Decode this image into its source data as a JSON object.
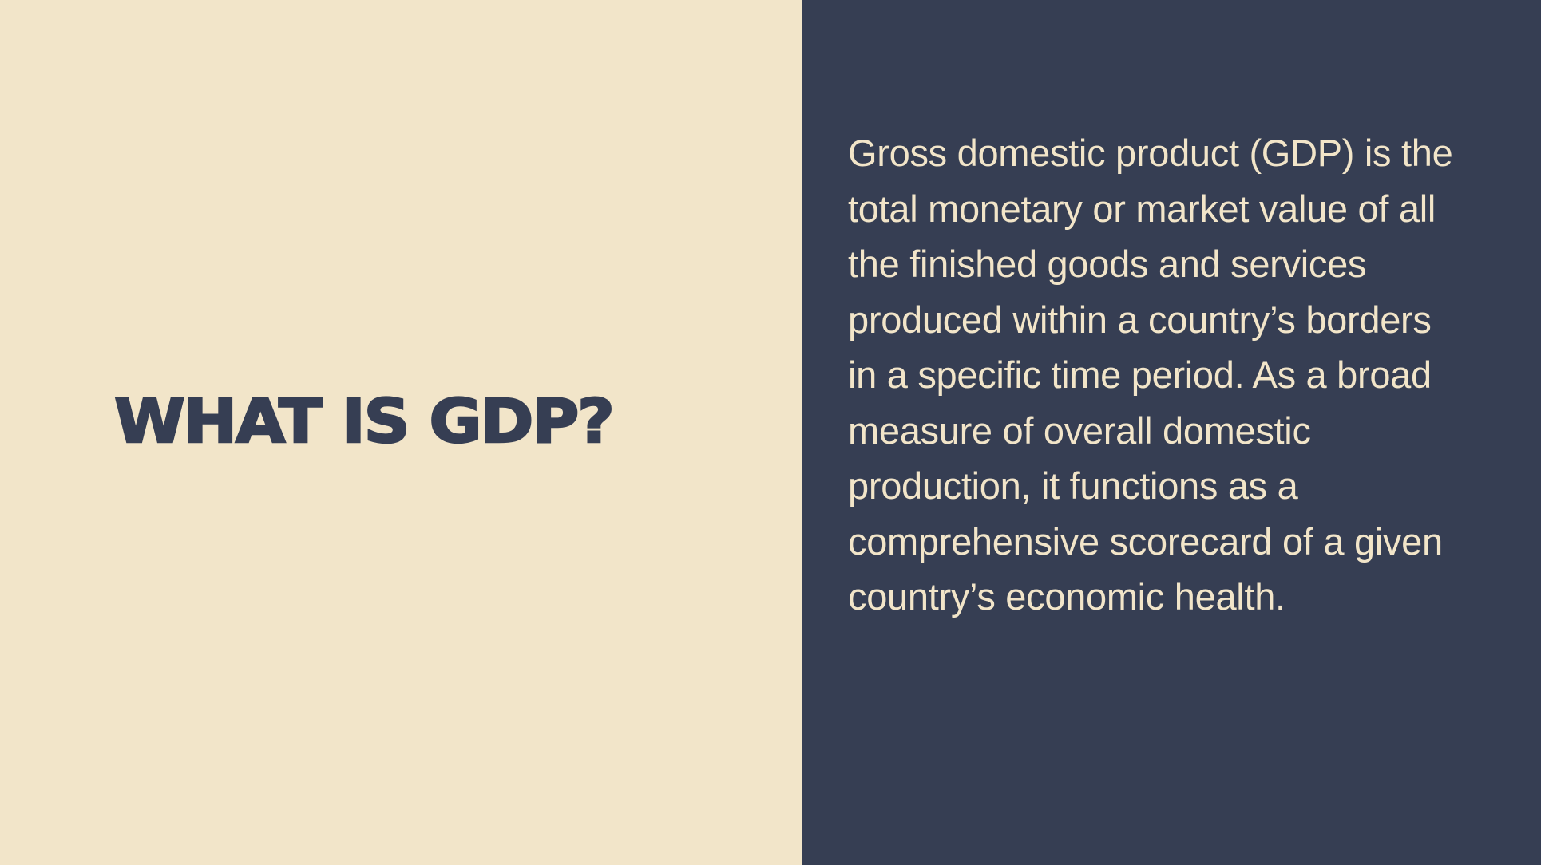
{
  "slide": {
    "title": "WHAT IS GDP?",
    "body": "Gross domestic product (GDP) is the\ntotal monetary or market value of all\nthe finished goods and services\nproduced within a country’s borders\nin a specific time period. As a broad\nmeasure of overall domestic\nproduction, it functions as a\ncomprehensive scorecard of a given\ncountry’s economic health."
  },
  "colors": {
    "cream": "#F2E5C9",
    "navy": "#363E53"
  }
}
